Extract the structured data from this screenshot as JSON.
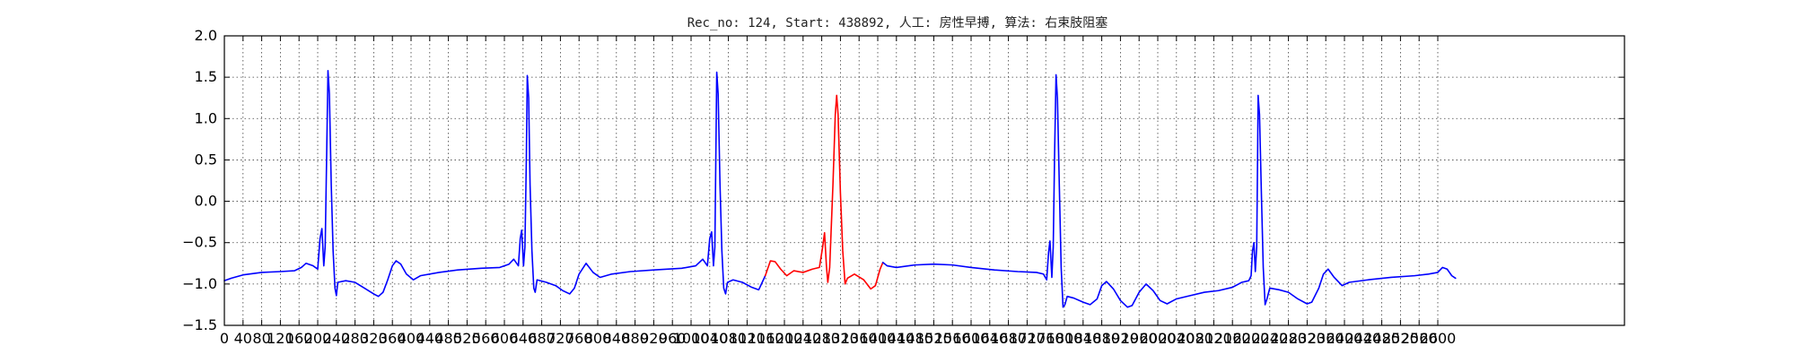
{
  "chart_data": {
    "type": "line",
    "title": "Rec_no: 124, Start: 438892, 人工: 房性早搏, 算法: 右束肢阻塞",
    "xlim": [
      0,
      3000
    ],
    "ylim": [
      -1.5,
      2.0
    ],
    "yticks": [
      -1.5,
      -1.0,
      -0.5,
      0.0,
      0.5,
      1.0,
      1.5,
      2.0
    ],
    "ytick_labels": [
      "−1.5",
      "−1.0",
      "−0.5",
      "0.0",
      "0.5",
      "1.0",
      "1.5",
      "2.0"
    ],
    "xtick_step": 40,
    "xtick_last": 2600,
    "grid": true,
    "colors": {
      "signal": "#0000ff",
      "highlight": "#ff0000",
      "grid": "#000000"
    },
    "highlight_range": [
      1159,
      1411
    ],
    "beats": [
      {
        "r_x": 222,
        "r_amp": 1.58
      },
      {
        "r_x": 649,
        "r_amp": 1.52
      },
      {
        "r_x": 1055,
        "r_amp": 1.56
      },
      {
        "r_x": 1312,
        "r_amp": 1.28
      },
      {
        "r_x": 1782,
        "r_amp": 1.53
      },
      {
        "r_x": 2215,
        "r_amp": 1.28
      }
    ],
    "series": [
      {
        "values": [
          [
            0,
            -0.96
          ],
          [
            15,
            -0.93
          ],
          [
            40,
            -0.89
          ],
          [
            80,
            -0.86
          ],
          [
            120,
            -0.85
          ],
          [
            150,
            -0.84
          ],
          [
            165,
            -0.8
          ],
          [
            175,
            -0.75
          ],
          [
            190,
            -0.78
          ],
          [
            200,
            -0.82
          ],
          [
            205,
            -0.45
          ],
          [
            209,
            -0.33
          ],
          [
            213,
            -0.78
          ],
          [
            216,
            -0.55
          ],
          [
            219,
            0.5
          ],
          [
            222,
            1.58
          ],
          [
            225,
            1.3
          ],
          [
            229,
            0.2
          ],
          [
            233,
            -0.6
          ],
          [
            237,
            -1.05
          ],
          [
            240,
            -1.14
          ],
          [
            243,
            -0.98
          ],
          [
            260,
            -0.96
          ],
          [
            280,
            -0.98
          ],
          [
            300,
            -1.05
          ],
          [
            320,
            -1.12
          ],
          [
            330,
            -1.15
          ],
          [
            340,
            -1.1
          ],
          [
            350,
            -0.95
          ],
          [
            360,
            -0.78
          ],
          [
            368,
            -0.72
          ],
          [
            378,
            -0.76
          ],
          [
            390,
            -0.88
          ],
          [
            405,
            -0.95
          ],
          [
            420,
            -0.9
          ],
          [
            460,
            -0.86
          ],
          [
            500,
            -0.83
          ],
          [
            550,
            -0.81
          ],
          [
            590,
            -0.8
          ],
          [
            610,
            -0.76
          ],
          [
            620,
            -0.7
          ],
          [
            630,
            -0.78
          ],
          [
            634,
            -0.45
          ],
          [
            637,
            -0.35
          ],
          [
            641,
            -0.78
          ],
          [
            644,
            -0.55
          ],
          [
            647,
            0.5
          ],
          [
            649,
            1.52
          ],
          [
            652,
            1.25
          ],
          [
            655,
            0.2
          ],
          [
            659,
            -0.6
          ],
          [
            663,
            -1.05
          ],
          [
            666,
            -1.1
          ],
          [
            670,
            -0.95
          ],
          [
            690,
            -0.98
          ],
          [
            710,
            -1.02
          ],
          [
            725,
            -1.08
          ],
          [
            740,
            -1.12
          ],
          [
            750,
            -1.05
          ],
          [
            760,
            -0.88
          ],
          [
            775,
            -0.75
          ],
          [
            790,
            -0.86
          ],
          [
            805,
            -0.92
          ],
          [
            830,
            -0.88
          ],
          [
            870,
            -0.85
          ],
          [
            920,
            -0.83
          ],
          [
            980,
            -0.81
          ],
          [
            1010,
            -0.78
          ],
          [
            1025,
            -0.7
          ],
          [
            1035,
            -0.78
          ],
          [
            1040,
            -0.45
          ],
          [
            1044,
            -0.37
          ],
          [
            1048,
            -0.78
          ],
          [
            1051,
            -0.55
          ],
          [
            1053,
            0.5
          ],
          [
            1055,
            1.56
          ],
          [
            1058,
            1.3
          ],
          [
            1062,
            0.2
          ],
          [
            1066,
            -0.6
          ],
          [
            1070,
            -1.05
          ],
          [
            1074,
            -1.12
          ],
          [
            1078,
            -0.98
          ],
          [
            1090,
            -0.95
          ],
          [
            1110,
            -0.98
          ],
          [
            1130,
            -1.04
          ],
          [
            1145,
            -1.07
          ],
          [
            1159,
            -0.9
          ]
        ]
      },
      {
        "values": [
          [
            1159,
            -0.9
          ],
          [
            1170,
            -0.72
          ],
          [
            1180,
            -0.73
          ],
          [
            1192,
            -0.82
          ],
          [
            1205,
            -0.9
          ],
          [
            1220,
            -0.84
          ],
          [
            1240,
            -0.86
          ],
          [
            1260,
            -0.82
          ],
          [
            1275,
            -0.8
          ],
          [
            1282,
            -0.55
          ],
          [
            1286,
            -0.38
          ],
          [
            1290,
            -0.78
          ],
          [
            1293,
            -0.98
          ],
          [
            1297,
            -0.8
          ],
          [
            1304,
            0.2
          ],
          [
            1309,
            1.05
          ],
          [
            1312,
            1.28
          ],
          [
            1315,
            1.05
          ],
          [
            1320,
            0.1
          ],
          [
            1325,
            -0.6
          ],
          [
            1330,
            -1.0
          ],
          [
            1335,
            -0.93
          ],
          [
            1350,
            -0.88
          ],
          [
            1370,
            -0.95
          ],
          [
            1385,
            -1.06
          ],
          [
            1395,
            -1.02
          ],
          [
            1405,
            -0.82
          ],
          [
            1411,
            -0.74
          ]
        ]
      },
      {
        "values": [
          [
            1411,
            -0.74
          ],
          [
            1420,
            -0.78
          ],
          [
            1440,
            -0.8
          ],
          [
            1480,
            -0.77
          ],
          [
            1520,
            -0.76
          ],
          [
            1560,
            -0.77
          ],
          [
            1600,
            -0.8
          ],
          [
            1650,
            -0.83
          ],
          [
            1700,
            -0.85
          ],
          [
            1740,
            -0.86
          ],
          [
            1755,
            -0.88
          ],
          [
            1762,
            -0.95
          ],
          [
            1766,
            -0.62
          ],
          [
            1769,
            -0.48
          ],
          [
            1773,
            -0.92
          ],
          [
            1776,
            -0.55
          ],
          [
            1779,
            0.6
          ],
          [
            1782,
            1.53
          ],
          [
            1785,
            1.25
          ],
          [
            1789,
            0.2
          ],
          [
            1793,
            -0.8
          ],
          [
            1797,
            -1.28
          ],
          [
            1801,
            -1.25
          ],
          [
            1806,
            -1.15
          ],
          [
            1820,
            -1.17
          ],
          [
            1840,
            -1.22
          ],
          [
            1855,
            -1.25
          ],
          [
            1870,
            -1.18
          ],
          [
            1880,
            -1.02
          ],
          [
            1890,
            -0.97
          ],
          [
            1905,
            -1.06
          ],
          [
            1920,
            -1.2
          ],
          [
            1935,
            -1.28
          ],
          [
            1945,
            -1.26
          ],
          [
            1960,
            -1.1
          ],
          [
            1975,
            -1.0
          ],
          [
            1990,
            -1.08
          ],
          [
            2005,
            -1.2
          ],
          [
            2020,
            -1.24
          ],
          [
            2040,
            -1.18
          ],
          [
            2070,
            -1.14
          ],
          [
            2100,
            -1.1
          ],
          [
            2130,
            -1.08
          ],
          [
            2160,
            -1.04
          ],
          [
            2180,
            -0.98
          ],
          [
            2195,
            -0.96
          ],
          [
            2200,
            -0.9
          ],
          [
            2203,
            -0.6
          ],
          [
            2206,
            -0.5
          ],
          [
            2209,
            -0.85
          ],
          [
            2212,
            -0.55
          ],
          [
            2214,
            0.6
          ],
          [
            2215,
            1.28
          ],
          [
            2218,
            1.05
          ],
          [
            2222,
            0.1
          ],
          [
            2226,
            -0.8
          ],
          [
            2230,
            -1.25
          ],
          [
            2234,
            -1.18
          ],
          [
            2240,
            -1.05
          ],
          [
            2260,
            -1.07
          ],
          [
            2280,
            -1.1
          ],
          [
            2300,
            -1.18
          ],
          [
            2320,
            -1.24
          ],
          [
            2330,
            -1.22
          ],
          [
            2345,
            -1.05
          ],
          [
            2355,
            -0.88
          ],
          [
            2365,
            -0.82
          ],
          [
            2378,
            -0.92
          ],
          [
            2395,
            -1.02
          ],
          [
            2410,
            -0.98
          ],
          [
            2450,
            -0.95
          ],
          [
            2500,
            -0.92
          ],
          [
            2550,
            -0.9
          ],
          [
            2580,
            -0.88
          ],
          [
            2600,
            -0.86
          ],
          [
            2610,
            -0.8
          ],
          [
            2620,
            -0.82
          ],
          [
            2630,
            -0.9
          ],
          [
            2638,
            -0.93
          ]
        ]
      }
    ]
  }
}
